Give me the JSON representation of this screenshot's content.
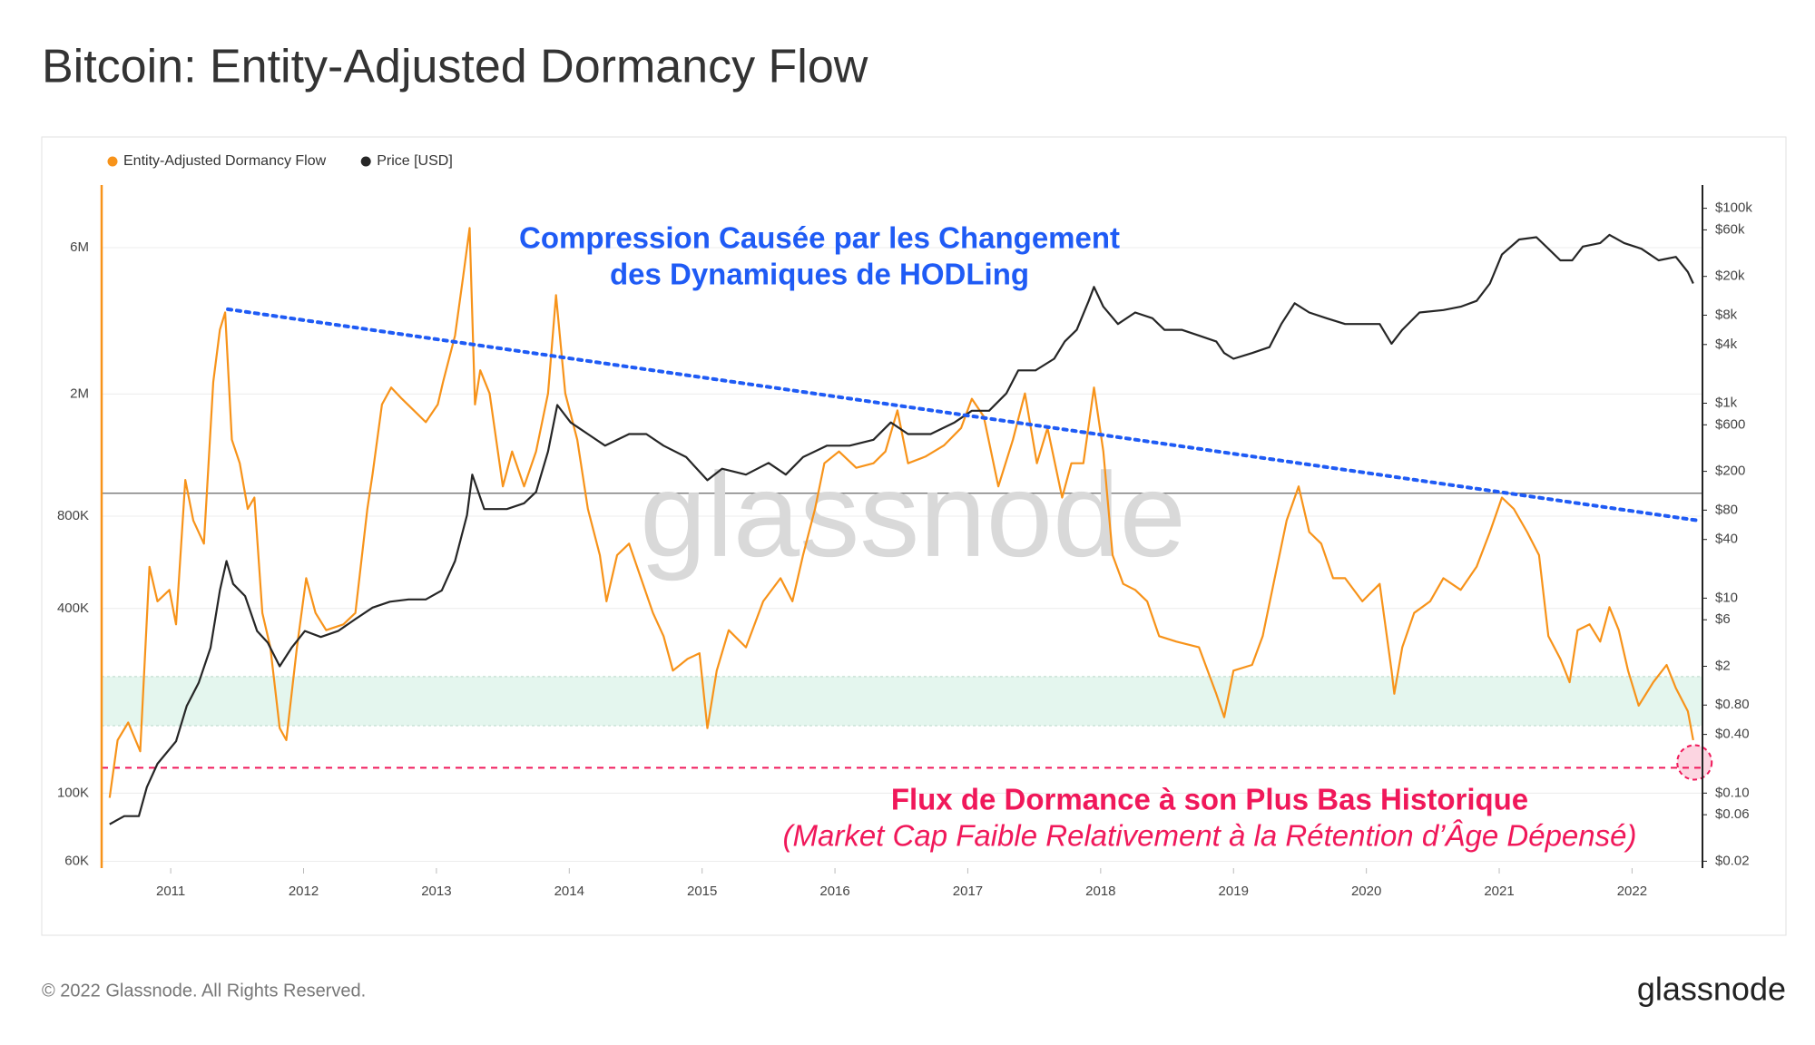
{
  "chart_data": {
    "type": "line",
    "title": "Bitcoin: Entity-Adjusted Dormancy Flow",
    "watermark": "glassnode",
    "footer": "© 2022 Glassnode. All Rights Reserved.",
    "logo": "glassnode",
    "annotations": [
      {
        "lines": [
          "Compression Causée par les Changement",
          "des Dynamiques de HODLing"
        ],
        "color": "#1f5bf5"
      },
      {
        "lines": [
          "Flux de Dormance à son Plus Bas Historique",
          "(Market Cap Faible Relativement à la Rétention d’Âge Dépensé)"
        ],
        "color": "#f0185a"
      }
    ],
    "log_scale": true,
    "grid": true,
    "xlim": [
      2010.48,
      2022.53
    ],
    "xticks": [
      2011,
      2012,
      2013,
      2014,
      2015,
      2016,
      2017,
      2018,
      2019,
      2020,
      2021,
      2022
    ],
    "ylim": [
      57000,
      9600000
    ],
    "yticks": [
      {
        "value": 60000,
        "label": "60K"
      },
      {
        "value": 100000,
        "label": "100K"
      },
      {
        "value": 400000,
        "label": "400K"
      },
      {
        "value": 800000,
        "label": "800K"
      },
      {
        "value": 2000000,
        "label": "2M"
      },
      {
        "value": 6000000,
        "label": "6M"
      }
    ],
    "y2lim": [
      0.017,
      173000
    ],
    "y2ticks": [
      {
        "value": 0.02,
        "label": "$0.02"
      },
      {
        "value": 0.06,
        "label": "$0.06"
      },
      {
        "value": 0.1,
        "label": "$0.10"
      },
      {
        "value": 0.4,
        "label": "$0.40"
      },
      {
        "value": 0.8,
        "label": "$0.80"
      },
      {
        "value": 2,
        "label": "$2"
      },
      {
        "value": 6,
        "label": "$6"
      },
      {
        "value": 10,
        "label": "$10"
      },
      {
        "value": 40,
        "label": "$40"
      },
      {
        "value": 80,
        "label": "$80"
      },
      {
        "value": 200,
        "label": "$200"
      },
      {
        "value": 600,
        "label": "$600"
      },
      {
        "value": 1000,
        "label": "$1k"
      },
      {
        "value": 4000,
        "label": "$4k"
      },
      {
        "value": 8000,
        "label": "$8k"
      },
      {
        "value": 20000,
        "label": "$20k"
      },
      {
        "value": 60000,
        "label": "$60k"
      },
      {
        "value": 100000,
        "label": "$100k"
      }
    ],
    "bands": [
      {
        "from": 166000,
        "to": 240000,
        "color": "#e4f6ee"
      }
    ],
    "reference_lines": [
      {
        "value": 950000,
        "color": "#666666",
        "style": "solid"
      },
      {
        "value": 121000,
        "color": "#f0185a",
        "style": "dashed"
      }
    ],
    "trendline": {
      "x": [
        2011.43,
        2022.49
      ],
      "values": [
        3780000,
        775000
      ],
      "color": "#1f5bf5"
    },
    "highlight": {
      "x": 2022.47,
      "value": 126000,
      "color": "#f0185a"
    },
    "series": [
      {
        "name": "Entity-Adjusted Dormancy Flow",
        "color": "#f7931a",
        "axis": "y",
        "x": [
          2010.54,
          2010.6,
          2010.68,
          2010.77,
          2010.84,
          2010.9,
          2010.99,
          2011.04,
          2011.11,
          2011.17,
          2011.25,
          2011.32,
          2011.37,
          2011.41,
          2011.46,
          2011.52,
          2011.58,
          2011.63,
          2011.69,
          2011.75,
          2011.82,
          2011.87,
          2011.95,
          2012.02,
          2012.09,
          2012.17,
          2012.3,
          2012.39,
          2012.48,
          2012.52,
          2012.59,
          2012.66,
          2012.74,
          2012.83,
          2012.92,
          2013.01,
          2013.05,
          2013.14,
          2013.2,
          2013.25,
          2013.29,
          2013.33,
          2013.4,
          2013.5,
          2013.57,
          2013.66,
          2013.75,
          2013.84,
          2013.9,
          2013.97,
          2014.06,
          2014.14,
          2014.23,
          2014.28,
          2014.36,
          2014.45,
          2014.54,
          2014.63,
          2014.71,
          2014.78,
          2014.89,
          2014.98,
          2015.04,
          2015.11,
          2015.2,
          2015.33,
          2015.46,
          2015.59,
          2015.68,
          2015.76,
          2015.85,
          2015.92,
          2016.03,
          2016.16,
          2016.29,
          2016.38,
          2016.47,
          2016.55,
          2016.68,
          2016.82,
          2016.95,
          2017.03,
          2017.12,
          2017.23,
          2017.34,
          2017.43,
          2017.52,
          2017.6,
          2017.71,
          2017.78,
          2017.87,
          2017.95,
          2018.02,
          2018.09,
          2018.17,
          2018.26,
          2018.35,
          2018.44,
          2018.57,
          2018.74,
          2018.87,
          2018.93,
          2019.0,
          2019.14,
          2019.22,
          2019.31,
          2019.4,
          2019.49,
          2019.57,
          2019.66,
          2019.75,
          2019.84,
          2019.97,
          2020.1,
          2020.19,
          2020.21,
          2020.27,
          2020.36,
          2020.48,
          2020.58,
          2020.71,
          2020.83,
          2020.93,
          2021.02,
          2021.11,
          2021.21,
          2021.3,
          2021.37,
          2021.46,
          2021.53,
          2021.59,
          2021.68,
          2021.76,
          2021.83,
          2021.9,
          2021.97,
          2022.05,
          2022.16,
          2022.26,
          2022.33,
          2022.42,
          2022.46
        ],
        "values": [
          96600,
          149000,
          170000,
          137000,
          547000,
          422000,
          460000,
          355000,
          1050000,
          774000,
          651000,
          2190000,
          3240000,
          3690000,
          1420000,
          1190000,
          845000,
          920000,
          387000,
          299000,
          163000,
          149000,
          299000,
          502000,
          387000,
          340000,
          355000,
          387000,
          845000,
          1100000,
          1850000,
          2100000,
          1930000,
          1770000,
          1620000,
          1850000,
          2190000,
          3100000,
          4790000,
          6950000,
          1850000,
          2390000,
          2010000,
          1000000,
          1300000,
          1000000,
          1300000,
          2010000,
          4200000,
          2010000,
          1420000,
          845000,
          597000,
          422000,
          597000,
          651000,
          502000,
          387000,
          325000,
          251000,
          274000,
          286000,
          163000,
          251000,
          340000,
          299000,
          422000,
          502000,
          422000,
          597000,
          845000,
          1190000,
          1300000,
          1150000,
          1190000,
          1300000,
          1770000,
          1190000,
          1250000,
          1360000,
          1550000,
          1930000,
          1690000,
          1000000,
          1420000,
          2010000,
          1190000,
          1550000,
          920000,
          1190000,
          1190000,
          2100000,
          1300000,
          597000,
          481000,
          460000,
          422000,
          325000,
          312000,
          299000,
          211000,
          177000,
          251000,
          262000,
          325000,
          502000,
          774000,
          1000000,
          710000,
          651000,
          502000,
          502000,
          422000,
          481000,
          251000,
          211000,
          299000,
          387000,
          422000,
          502000,
          460000,
          547000,
          710000,
          920000,
          845000,
          710000,
          597000,
          325000,
          274000,
          230000,
          340000,
          355000,
          312000,
          404000,
          340000,
          251000,
          193000,
          230000,
          262000,
          220000,
          185000,
          149000
        ]
      },
      {
        "name": "Price [USD]",
        "color": "#262626",
        "axis": "y2",
        "x": [
          2010.54,
          2010.65,
          2010.76,
          2010.82,
          2010.9,
          2011.04,
          2011.12,
          2011.21,
          2011.3,
          2011.37,
          2011.42,
          2011.47,
          2011.56,
          2011.65,
          2011.73,
          2011.82,
          2011.91,
          2012.01,
          2012.13,
          2012.26,
          2012.39,
          2012.52,
          2012.65,
          2012.79,
          2012.92,
          2013.04,
          2013.14,
          2013.23,
          2013.27,
          2013.36,
          2013.44,
          2013.53,
          2013.66,
          2013.75,
          2013.84,
          2013.91,
          2014.01,
          2014.14,
          2014.27,
          2014.45,
          2014.58,
          2014.71,
          2014.88,
          2015.04,
          2015.15,
          2015.33,
          2015.5,
          2015.63,
          2015.76,
          2015.94,
          2016.11,
          2016.29,
          2016.42,
          2016.55,
          2016.72,
          2016.9,
          2017.03,
          2017.16,
          2017.29,
          2017.38,
          2017.51,
          2017.65,
          2017.73,
          2017.82,
          2017.91,
          2017.95,
          2018.02,
          2018.13,
          2018.26,
          2018.39,
          2018.48,
          2018.61,
          2018.74,
          2018.87,
          2018.93,
          2019.0,
          2019.14,
          2019.27,
          2019.36,
          2019.46,
          2019.57,
          2019.7,
          2019.84,
          2019.97,
          2020.1,
          2020.19,
          2020.27,
          2020.4,
          2020.58,
          2020.71,
          2020.83,
          2020.93,
          2021.02,
          2021.15,
          2021.28,
          2021.37,
          2021.46,
          2021.55,
          2021.63,
          2021.76,
          2021.83,
          2021.94,
          2022.07,
          2022.2,
          2022.33,
          2022.42,
          2022.46
        ],
        "values": [
          0.048,
          0.058,
          0.058,
          0.115,
          0.2,
          0.34,
          0.78,
          1.35,
          3.1,
          12,
          24,
          14,
          10.5,
          4.6,
          3.5,
          2.0,
          3.1,
          4.6,
          4.0,
          4.6,
          6.1,
          8.0,
          9.2,
          9.7,
          9.7,
          12,
          24,
          71,
          185,
          82,
          82,
          82,
          94,
          123,
          320,
          957,
          635,
          483,
          367,
          483,
          483,
          367,
          280,
          162,
          213,
          185,
          244,
          185,
          280,
          367,
          367,
          422,
          635,
          483,
          483,
          635,
          836,
          836,
          1260,
          2170,
          2170,
          2860,
          4300,
          5660,
          11200,
          15600,
          9780,
          6490,
          8530,
          7440,
          5660,
          5660,
          4940,
          4300,
          3270,
          2860,
          3270,
          3760,
          6490,
          10600,
          8530,
          7440,
          6490,
          6490,
          6490,
          4080,
          5660,
          8530,
          9020,
          9780,
          11200,
          16900,
          33500,
          47800,
          50500,
          38400,
          29200,
          29200,
          40500,
          44000,
          53300,
          44000,
          38400,
          29200,
          31700,
          22200,
          16900
        ]
      }
    ]
  }
}
